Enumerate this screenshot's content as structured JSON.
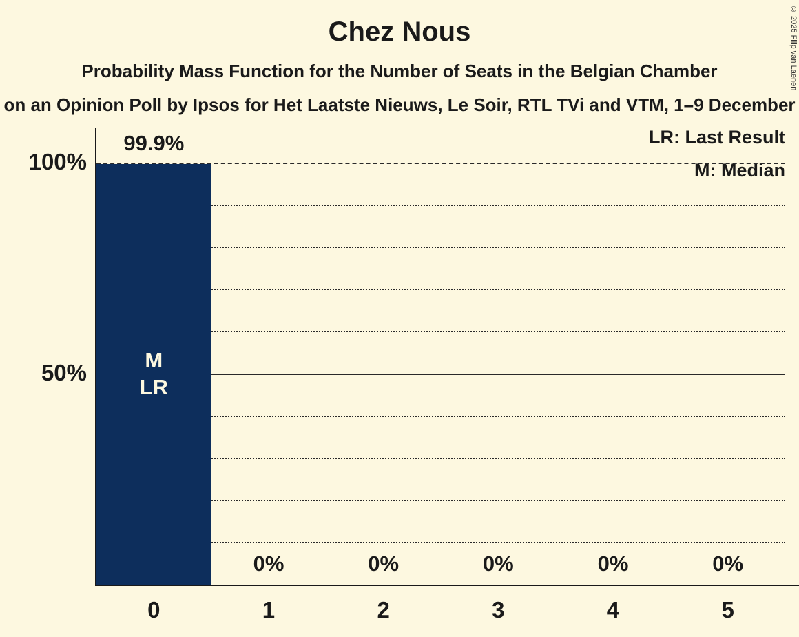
{
  "title": "Chez Nous",
  "subtitle1": "Probability Mass Function for the Number of Seats in the Belgian Chamber",
  "subtitle2": "on an Opinion Poll by Ipsos for Het Laatste Nieuws, Le Soir, RTL TVi and VTM, 1–9 December",
  "legend": {
    "lr": "LR: Last Result",
    "m": "M: Median"
  },
  "copyright": "© 2025 Filip van Laenen",
  "chart_data": {
    "type": "bar",
    "title": "Chez Nous",
    "categories": [
      "0",
      "1",
      "2",
      "3",
      "4",
      "5"
    ],
    "values": [
      99.9,
      0,
      0,
      0,
      0,
      0
    ],
    "value_labels": [
      "99.9%",
      "0%",
      "0%",
      "0%",
      "0%",
      "0%"
    ],
    "bar_annotations": [
      [
        "M",
        "LR"
      ],
      [],
      [],
      [],
      [],
      []
    ],
    "ylim": [
      0,
      100
    ],
    "yticks": [
      {
        "pct": 100,
        "label": "100%"
      },
      {
        "pct": 50,
        "label": "50%"
      }
    ],
    "gridline_step_pct": 10,
    "solid_gridlines_pct": [
      50
    ],
    "dashed_gridlines_pct": [
      100
    ],
    "legend_position": "top-right",
    "grid": true,
    "bar_color": "#0d2e5c",
    "background_color": "#fdf8e0",
    "text_color": "#1a1a1a",
    "bar_label_color": "#fdf8e0"
  }
}
